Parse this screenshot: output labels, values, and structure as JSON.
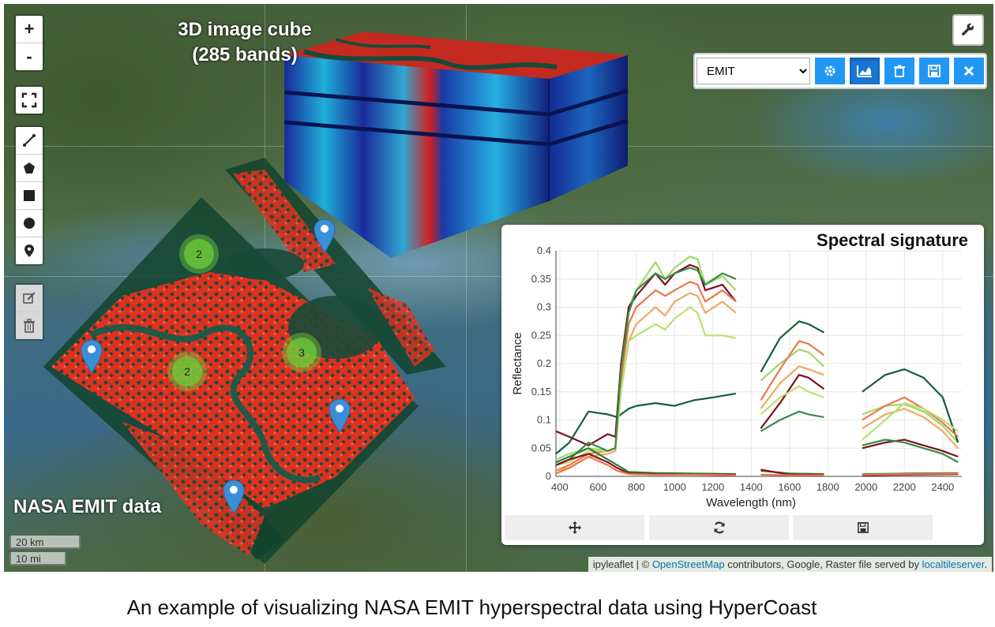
{
  "map": {
    "title_cube_line1": "3D image cube",
    "title_cube_line2": "(285 bands)",
    "title_emit": "NASA EMIT data",
    "zoom_in": "+",
    "zoom_out": "-",
    "clusters": [
      "2",
      "2",
      "3"
    ],
    "scale_km": "20 km",
    "scale_mi": "10 mi",
    "attribution_prefix": "ipyleaflet | © ",
    "attribution_osm": "OpenStreetMap",
    "attribution_middle": " contributors, Google, Raster file served by ",
    "attribution_tileserver": "localtileserver",
    "attribution_suffix": "."
  },
  "toolbar": {
    "dataset_selected": "EMIT",
    "buttons": [
      "gear-icon",
      "chart-icon",
      "trash-icon",
      "save-icon",
      "close-icon"
    ]
  },
  "colors": {
    "accent": "#2196f3",
    "cluster": "#6ecc39",
    "marker": "#3a8fd6",
    "emit_red": "#ff3020"
  },
  "chart_data": {
    "type": "line",
    "title": "Spectral signature",
    "xlabel": "Wavelength (nm)",
    "ylabel": "Reflectance",
    "xlim": [
      380,
      2500
    ],
    "ylim": [
      0,
      0.4
    ],
    "xticks": [
      400,
      600,
      800,
      1000,
      1200,
      1400,
      1600,
      1800,
      2000,
      2200,
      2400
    ],
    "yticks": [
      0,
      0.05,
      0.1,
      0.15,
      0.2,
      0.25,
      0.3,
      0.35,
      0.4
    ],
    "gaps": [
      [
        1320,
        1440
      ],
      [
        1790,
        1960
      ]
    ],
    "series": [
      {
        "color": "#9ed86b",
        "points": [
          [
            380,
            0.03
          ],
          [
            450,
            0.04
          ],
          [
            550,
            0.05
          ],
          [
            650,
            0.045
          ],
          [
            690,
            0.05
          ],
          [
            720,
            0.2
          ],
          [
            760,
            0.3
          ],
          [
            800,
            0.33
          ],
          [
            900,
            0.38
          ],
          [
            950,
            0.35
          ],
          [
            1000,
            0.37
          ],
          [
            1080,
            0.39
          ],
          [
            1120,
            0.385
          ],
          [
            1160,
            0.34
          ],
          [
            1250,
            0.355
          ],
          [
            1320,
            0.33
          ],
          [
            1450,
            0.17
          ],
          [
            1550,
            0.2
          ],
          [
            1650,
            0.225
          ],
          [
            1700,
            0.22
          ],
          [
            1780,
            0.195
          ],
          [
            1980,
            0.11
          ],
          [
            2100,
            0.125
          ],
          [
            2200,
            0.128
          ],
          [
            2300,
            0.115
          ],
          [
            2400,
            0.09
          ],
          [
            2480,
            0.06
          ]
        ]
      },
      {
        "color": "#7a1020",
        "points": [
          [
            380,
            0.08
          ],
          [
            450,
            0.07
          ],
          [
            550,
            0.055
          ],
          [
            650,
            0.075
          ],
          [
            690,
            0.07
          ],
          [
            720,
            0.2
          ],
          [
            760,
            0.3
          ],
          [
            800,
            0.32
          ],
          [
            900,
            0.36
          ],
          [
            950,
            0.34
          ],
          [
            1000,
            0.36
          ],
          [
            1080,
            0.375
          ],
          [
            1120,
            0.37
          ],
          [
            1160,
            0.33
          ],
          [
            1250,
            0.34
          ],
          [
            1320,
            0.31
          ],
          [
            1450,
            0.085
          ],
          [
            1550,
            0.13
          ],
          [
            1650,
            0.18
          ],
          [
            1700,
            0.175
          ],
          [
            1780,
            0.155
          ],
          [
            1980,
            0.05
          ],
          [
            2100,
            0.06
          ],
          [
            2200,
            0.065
          ],
          [
            2300,
            0.055
          ],
          [
            2400,
            0.045
          ],
          [
            2480,
            0.035
          ]
        ]
      },
      {
        "color": "#106038",
        "points": [
          [
            380,
            0.04
          ],
          [
            450,
            0.06
          ],
          [
            550,
            0.115
          ],
          [
            650,
            0.11
          ],
          [
            700,
            0.105
          ],
          [
            760,
            0.12
          ],
          [
            800,
            0.125
          ],
          [
            900,
            0.13
          ],
          [
            1000,
            0.125
          ],
          [
            1100,
            0.135
          ],
          [
            1200,
            0.14
          ],
          [
            1320,
            0.147
          ],
          [
            1450,
            0.185
          ],
          [
            1550,
            0.245
          ],
          [
            1650,
            0.275
          ],
          [
            1700,
            0.27
          ],
          [
            1780,
            0.255
          ],
          [
            1980,
            0.15
          ],
          [
            2100,
            0.18
          ],
          [
            2200,
            0.19
          ],
          [
            2300,
            0.175
          ],
          [
            2400,
            0.14
          ],
          [
            2480,
            0.06
          ]
        ]
      },
      {
        "color": "#e87848",
        "points": [
          [
            380,
            0.01
          ],
          [
            450,
            0.02
          ],
          [
            550,
            0.04
          ],
          [
            650,
            0.045
          ],
          [
            690,
            0.05
          ],
          [
            720,
            0.17
          ],
          [
            760,
            0.27
          ],
          [
            800,
            0.3
          ],
          [
            900,
            0.33
          ],
          [
            950,
            0.32
          ],
          [
            1000,
            0.33
          ],
          [
            1080,
            0.345
          ],
          [
            1120,
            0.34
          ],
          [
            1160,
            0.31
          ],
          [
            1250,
            0.33
          ],
          [
            1320,
            0.31
          ],
          [
            1450,
            0.135
          ],
          [
            1550,
            0.19
          ],
          [
            1650,
            0.24
          ],
          [
            1700,
            0.235
          ],
          [
            1780,
            0.215
          ],
          [
            1980,
            0.1
          ],
          [
            2100,
            0.125
          ],
          [
            2200,
            0.14
          ],
          [
            2300,
            0.12
          ],
          [
            2400,
            0.095
          ],
          [
            2480,
            0.07
          ]
        ]
      },
      {
        "color": "#f0a860",
        "points": [
          [
            380,
            0.01
          ],
          [
            450,
            0.015
          ],
          [
            550,
            0.035
          ],
          [
            650,
            0.04
          ],
          [
            690,
            0.045
          ],
          [
            720,
            0.15
          ],
          [
            760,
            0.24
          ],
          [
            800,
            0.27
          ],
          [
            900,
            0.3
          ],
          [
            950,
            0.285
          ],
          [
            1000,
            0.31
          ],
          [
            1080,
            0.325
          ],
          [
            1120,
            0.32
          ],
          [
            1160,
            0.29
          ],
          [
            1250,
            0.31
          ],
          [
            1320,
            0.29
          ],
          [
            1450,
            0.12
          ],
          [
            1550,
            0.165
          ],
          [
            1650,
            0.195
          ],
          [
            1700,
            0.19
          ],
          [
            1780,
            0.18
          ],
          [
            1980,
            0.085
          ],
          [
            2100,
            0.11
          ],
          [
            2200,
            0.12
          ],
          [
            2300,
            0.105
          ],
          [
            2400,
            0.08
          ],
          [
            2480,
            0.05
          ]
        ]
      },
      {
        "color": "#b8e070",
        "points": [
          [
            380,
            0.02
          ],
          [
            450,
            0.025
          ],
          [
            550,
            0.045
          ],
          [
            650,
            0.045
          ],
          [
            690,
            0.05
          ],
          [
            720,
            0.15
          ],
          [
            760,
            0.24
          ],
          [
            800,
            0.25
          ],
          [
            900,
            0.27
          ],
          [
            950,
            0.26
          ],
          [
            1000,
            0.28
          ],
          [
            1080,
            0.3
          ],
          [
            1120,
            0.29
          ],
          [
            1160,
            0.25
          ],
          [
            1250,
            0.25
          ],
          [
            1320,
            0.245
          ],
          [
            1450,
            0.11
          ],
          [
            1550,
            0.14
          ],
          [
            1650,
            0.16
          ],
          [
            1700,
            0.15
          ],
          [
            1780,
            0.14
          ],
          [
            1980,
            0.065
          ],
          [
            2100,
            0.1
          ],
          [
            2200,
            0.13
          ],
          [
            2300,
            0.12
          ],
          [
            2400,
            0.1
          ],
          [
            2480,
            0.08
          ]
        ]
      },
      {
        "color": "#3a8a48",
        "points": [
          [
            380,
            0.02
          ],
          [
            450,
            0.03
          ],
          [
            550,
            0.06
          ],
          [
            650,
            0.045
          ],
          [
            690,
            0.05
          ],
          [
            720,
            0.19
          ],
          [
            760,
            0.29
          ],
          [
            800,
            0.33
          ],
          [
            900,
            0.36
          ],
          [
            950,
            0.35
          ],
          [
            1000,
            0.36
          ],
          [
            1080,
            0.37
          ],
          [
            1120,
            0.365
          ],
          [
            1160,
            0.34
          ],
          [
            1250,
            0.36
          ],
          [
            1320,
            0.35
          ],
          [
            1450,
            0.08
          ],
          [
            1550,
            0.1
          ],
          [
            1650,
            0.115
          ],
          [
            1700,
            0.11
          ],
          [
            1780,
            0.105
          ],
          [
            1980,
            0.055
          ],
          [
            2100,
            0.065
          ],
          [
            2200,
            0.06
          ],
          [
            2300,
            0.05
          ],
          [
            2400,
            0.04
          ],
          [
            2480,
            0.025
          ]
        ]
      },
      {
        "color": "#2e7a3c",
        "points": [
          [
            380,
            0.025
          ],
          [
            450,
            0.035
          ],
          [
            550,
            0.05
          ],
          [
            650,
            0.03
          ],
          [
            700,
            0.02
          ],
          [
            760,
            0.008
          ],
          [
            900,
            0.006
          ],
          [
            1100,
            0.005
          ],
          [
            1320,
            0.004
          ],
          [
            1450,
            0.01
          ],
          [
            1600,
            0.005
          ],
          [
            1780,
            0.004
          ],
          [
            1980,
            0.004
          ],
          [
            2200,
            0.005
          ],
          [
            2480,
            0.006
          ]
        ]
      },
      {
        "color": "#8a1020",
        "points": [
          [
            380,
            0.02
          ],
          [
            450,
            0.03
          ],
          [
            550,
            0.04
          ],
          [
            650,
            0.025
          ],
          [
            700,
            0.015
          ],
          [
            760,
            0.005
          ],
          [
            900,
            0.004
          ],
          [
            1100,
            0.003
          ],
          [
            1320,
            0.003
          ],
          [
            1450,
            0.012
          ],
          [
            1600,
            0.003
          ],
          [
            1780,
            0.003
          ],
          [
            1980,
            0.002
          ],
          [
            2200,
            0.003
          ],
          [
            2480,
            0.004
          ]
        ]
      },
      {
        "color": "#e87848",
        "points": [
          [
            380,
            0.005
          ],
          [
            450,
            0.015
          ],
          [
            550,
            0.035
          ],
          [
            650,
            0.02
          ],
          [
            700,
            0.01
          ],
          [
            760,
            0.004
          ],
          [
            900,
            0.003
          ],
          [
            1100,
            0.003
          ],
          [
            1320,
            0.002
          ],
          [
            1450,
            0.003
          ],
          [
            1600,
            0.002
          ],
          [
            1780,
            0.002
          ],
          [
            1980,
            0.003
          ],
          [
            2200,
            0.004
          ],
          [
            2480,
            0.005
          ]
        ]
      }
    ]
  },
  "chart_buttons": [
    "move-icon",
    "refresh-icon",
    "save-icon"
  ],
  "caption": "An example of visualizing NASA EMIT hyperspectral data using HyperCoast"
}
